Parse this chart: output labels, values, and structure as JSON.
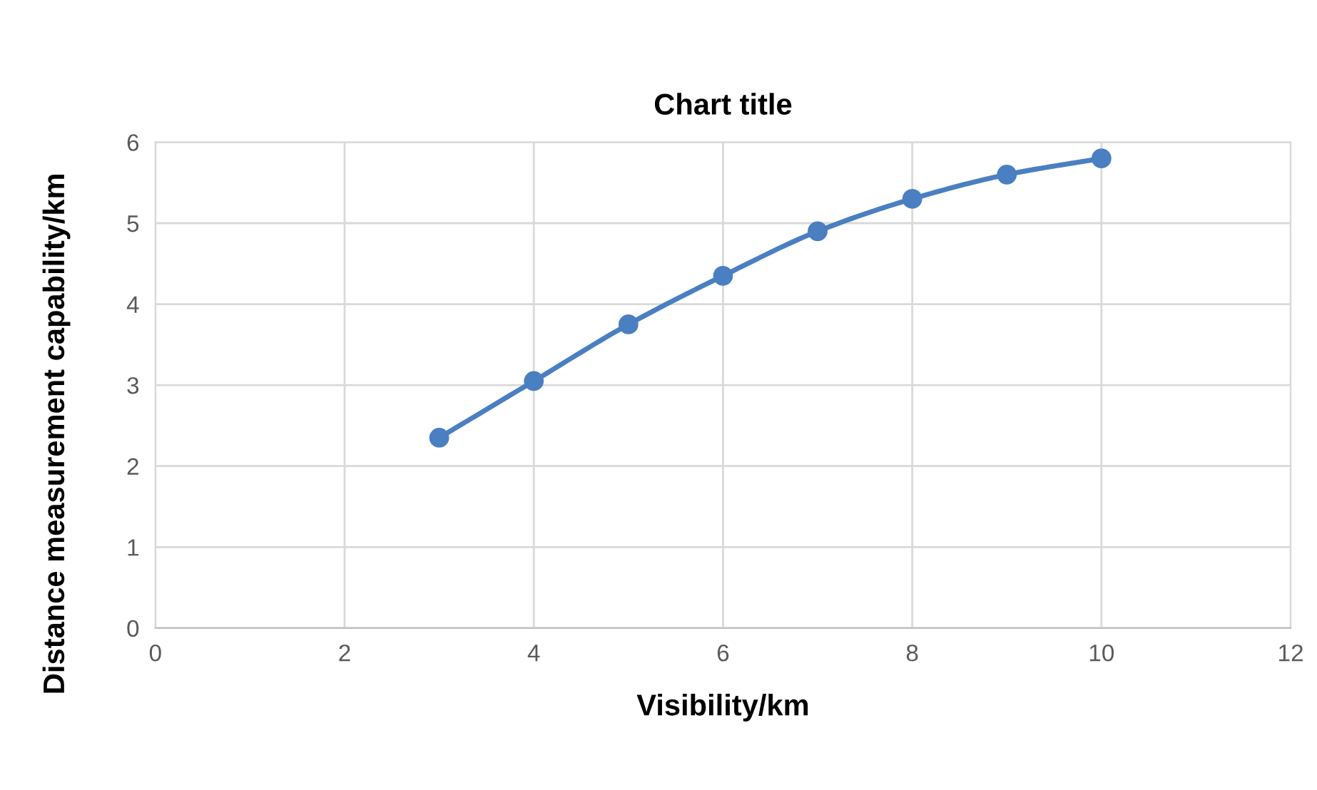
{
  "chart_data": {
    "type": "line",
    "title": "Chart title",
    "xlabel": "Visibility/km",
    "ylabel": "Distance measurement capability/km",
    "x": [
      3,
      4,
      5,
      6,
      7,
      8,
      9,
      10
    ],
    "series": [
      {
        "color": "#4a7fc1",
        "values": [
          2.35,
          3.05,
          3.75,
          4.35,
          4.9,
          5.3,
          5.6,
          5.8
        ]
      }
    ],
    "xlim": [
      0,
      12
    ],
    "xticks": [
      0,
      2,
      4,
      6,
      8,
      10,
      12
    ],
    "ylim": [
      0,
      6
    ],
    "yticks": [
      0,
      1,
      2,
      3,
      4,
      5,
      6
    ],
    "grid": true,
    "marker": "circle",
    "line_style": "solid",
    "legend": false
  }
}
